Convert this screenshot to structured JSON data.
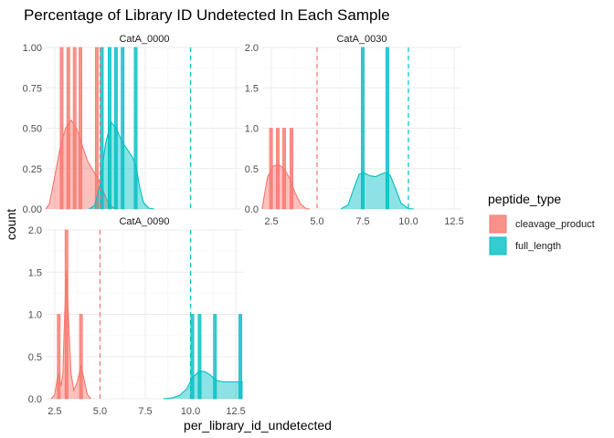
{
  "chart_data": {
    "type": "histogram",
    "title": "Percentage of Library ID Undetected In Each Sample",
    "xlabel": "per_library_id_undetected",
    "ylabel": "count",
    "legend": {
      "title": "peptide_type",
      "position": "right",
      "entries": [
        {
          "name": "cleavage_product",
          "color": "#F8766D"
        },
        {
          "name": "full_length",
          "color": "#00BFC4"
        }
      ]
    },
    "xlim": [
      2.0,
      12.9
    ],
    "x_ticks": [
      2.5,
      5.0,
      7.5,
      10.0,
      12.5
    ],
    "x_tick_labels": [
      "2.5",
      "5.0",
      "7.5",
      "10.0",
      "12.5"
    ],
    "reference_lines": {
      "cleavage_product": 5.0,
      "full_length": 10.0
    },
    "grid": true,
    "panels": [
      {
        "label": "CatA_0000",
        "ylim": [
          0,
          1.0
        ],
        "y_ticks": [
          0,
          0.25,
          0.5,
          0.75,
          1.0
        ],
        "y_tick_labels": [
          "0.00",
          "0.25",
          "0.50",
          "0.75",
          "1.00"
        ],
        "series": [
          {
            "name": "cleavage_product",
            "bars": [
              [
                2.88,
                1
              ],
              [
                3.25,
                1
              ],
              [
                3.6,
                1
              ],
              [
                3.92,
                1
              ],
              [
                4.82,
                1
              ]
            ],
            "density": [
              [
                2.0,
                0
              ],
              [
                2.2,
                0.03
              ],
              [
                2.5,
                0.2
              ],
              [
                2.8,
                0.38
              ],
              [
                3.1,
                0.5
              ],
              [
                3.4,
                0.55
              ],
              [
                3.7,
                0.5
              ],
              [
                4.0,
                0.4
              ],
              [
                4.3,
                0.3
              ],
              [
                4.6,
                0.24
              ],
              [
                4.85,
                0.2
              ],
              [
                5.1,
                0.13
              ],
              [
                5.4,
                0.05
              ],
              [
                5.7,
                0.01
              ],
              [
                6.0,
                0
              ]
            ]
          },
          {
            "name": "full_length",
            "bars": [
              [
                5.1,
                1
              ],
              [
                5.53,
                1
              ],
              [
                5.88,
                1
              ],
              [
                6.25,
                1
              ],
              [
                6.97,
                1
              ]
            ],
            "density": [
              [
                4.4,
                0
              ],
              [
                4.7,
                0.02
              ],
              [
                5.0,
                0.15
              ],
              [
                5.3,
                0.4
              ],
              [
                5.6,
                0.54
              ],
              [
                5.9,
                0.5
              ],
              [
                6.2,
                0.42
              ],
              [
                6.5,
                0.37
              ],
              [
                6.8,
                0.32
              ],
              [
                7.0,
                0.26
              ],
              [
                7.2,
                0.13
              ],
              [
                7.4,
                0.04
              ],
              [
                7.7,
                0.005
              ],
              [
                8.0,
                0
              ]
            ]
          }
        ]
      },
      {
        "label": "CatA_0030",
        "ylim": [
          0,
          2.0
        ],
        "y_ticks": [
          0,
          0.5,
          1.0,
          1.5,
          2.0
        ],
        "y_tick_labels": [
          "0.0",
          "0.5",
          "1.0",
          "1.5",
          "2.0"
        ],
        "series": [
          {
            "name": "cleavage_product",
            "bars": [
              [
                2.48,
                1
              ],
              [
                2.85,
                1
              ],
              [
                3.2,
                1
              ],
              [
                3.6,
                1
              ]
            ],
            "density": [
              [
                2.0,
                0
              ],
              [
                2.1,
                0.15
              ],
              [
                2.3,
                0.4
              ],
              [
                2.6,
                0.53
              ],
              [
                2.9,
                0.55
              ],
              [
                3.2,
                0.5
              ],
              [
                3.5,
                0.38
              ],
              [
                3.8,
                0.2
              ],
              [
                4.1,
                0.06
              ],
              [
                4.4,
                0.005
              ],
              [
                4.6,
                0
              ]
            ]
          },
          {
            "name": "full_length",
            "bars": [
              [
                7.5,
                2
              ],
              [
                8.85,
                2
              ]
            ],
            "density": [
              [
                6.3,
                0
              ],
              [
                6.7,
                0.05
              ],
              [
                7.0,
                0.25
              ],
              [
                7.3,
                0.43
              ],
              [
                7.55,
                0.45
              ],
              [
                7.9,
                0.41
              ],
              [
                8.2,
                0.4
              ],
              [
                8.5,
                0.43
              ],
              [
                8.75,
                0.45
              ],
              [
                9.0,
                0.42
              ],
              [
                9.3,
                0.25
              ],
              [
                9.6,
                0.07
              ],
              [
                10.0,
                0.005
              ],
              [
                10.3,
                0
              ]
            ]
          }
        ]
      },
      {
        "label": "CatA_0090",
        "ylim": [
          0,
          2.0
        ],
        "y_ticks": [
          0,
          0.5,
          1.0,
          1.5,
          2.0
        ],
        "y_tick_labels": [
          "0.0",
          "0.5",
          "1.0",
          "1.5",
          "2.0"
        ],
        "series": [
          {
            "name": "cleavage_product",
            "bars": [
              [
                2.72,
                1
              ],
              [
                3.15,
                2
              ],
              [
                3.95,
                1
              ]
            ],
            "density": [
              [
                2.3,
                0
              ],
              [
                2.5,
                0.05
              ],
              [
                2.65,
                0.25
              ],
              [
                2.72,
                0.3
              ],
              [
                2.85,
                0.15
              ],
              [
                2.95,
                0.3
              ],
              [
                3.05,
                1.0
              ],
              [
                3.15,
                1.52
              ],
              [
                3.25,
                1.0
              ],
              [
                3.4,
                0.3
              ],
              [
                3.55,
                0.1
              ],
              [
                3.75,
                0.2
              ],
              [
                3.95,
                0.4
              ],
              [
                4.1,
                0.25
              ],
              [
                4.3,
                0.05
              ],
              [
                4.5,
                0
              ]
            ]
          },
          {
            "name": "full_length",
            "bars": [
              [
                10.1,
                1
              ],
              [
                10.5,
                1
              ],
              [
                11.35,
                1
              ],
              [
                12.75,
                1
              ]
            ],
            "density": [
              [
                8.5,
                0
              ],
              [
                9.0,
                0.01
              ],
              [
                9.4,
                0.04
              ],
              [
                9.8,
                0.12
              ],
              [
                10.1,
                0.25
              ],
              [
                10.5,
                0.33
              ],
              [
                10.8,
                0.32
              ],
              [
                11.1,
                0.28
              ],
              [
                11.4,
                0.22
              ],
              [
                11.8,
                0.2
              ],
              [
                12.2,
                0.2
              ],
              [
                12.6,
                0.2
              ],
              [
                12.9,
                0.2
              ]
            ]
          }
        ]
      }
    ]
  }
}
